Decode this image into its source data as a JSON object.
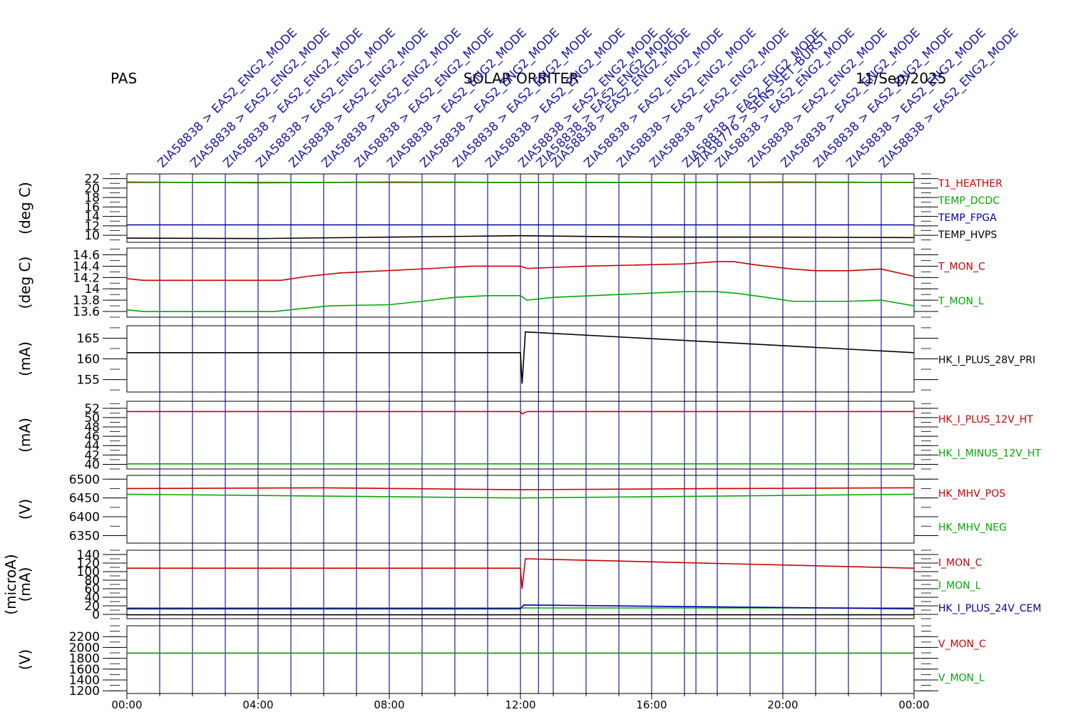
{
  "header": {
    "left": "PAS",
    "center": "SOLAR ORBITER",
    "right": "11/Sep/2025"
  },
  "events": [
    {
      "label": "ZIA58838 > EAS2_ENG2_MODE",
      "hour": 1.0
    },
    {
      "label": "ZIA58838 > EAS2_ENG2_MODE",
      "hour": 2.0
    },
    {
      "label": "ZIA58838 > EAS2_ENG2_MODE",
      "hour": 3.0
    },
    {
      "label": "ZIA58838 > EAS2_ENG2_MODE",
      "hour": 4.0
    },
    {
      "label": "ZIA58838 > EAS2_ENG2_MODE",
      "hour": 5.0
    },
    {
      "label": "ZIA58838 > EAS2_ENG2_MODE",
      "hour": 6.0
    },
    {
      "label": "ZIA58838 > EAS2_ENG2_MODE",
      "hour": 7.0
    },
    {
      "label": "ZIA58838 > EAS2_ENG2_MODE",
      "hour": 8.0
    },
    {
      "label": "ZIA58838 > EAS2_ENG2_MODE",
      "hour": 9.0
    },
    {
      "label": "ZIA58838 > EAS2_ENG2_MODE",
      "hour": 10.0
    },
    {
      "label": "ZIA58838 > EAS2_ENG2_MODE",
      "hour": 11.0
    },
    {
      "label": "ZIA58838 > EAS2_ENG2_MODE",
      "hour": 12.0
    },
    {
      "label": "ZIA58838 > EAS2_ENG2_MODE",
      "hour": 12.55
    },
    {
      "label": "ZIA58838 > EAS2_ENG2_MODE",
      "hour": 13.0
    },
    {
      "label": "ZIA58838 > EAS2_ENG2_MODE",
      "hour": 14.0
    },
    {
      "label": "ZIA58838 > EAS2_ENG2_MODE",
      "hour": 15.0
    },
    {
      "label": "ZIA58838 > EAS2_ENG2_MODE",
      "hour": 16.0
    },
    {
      "label": "ZIA58838 > EAS2_ENG2_MODE",
      "hour": 17.0
    },
    {
      "label": "ZIA58776 > SENS_SET_BURST",
      "hour": 17.35
    },
    {
      "label": "ZIA58838 > EAS2_ENG2_MODE",
      "hour": 18.0
    },
    {
      "label": "ZIA58838 > EAS2_ENG2_MODE",
      "hour": 19.0
    },
    {
      "label": "ZIA58838 > EAS2_ENG2_MODE",
      "hour": 20.0
    },
    {
      "label": "ZIA58838 > EAS2_ENG2_MODE",
      "hour": 21.0
    },
    {
      "label": "ZIA58838 > EAS2_ENG2_MODE",
      "hour": 22.0
    },
    {
      "label": "ZIA58838 > EAS2_ENG2_MODE",
      "hour": 23.0
    }
  ],
  "chart_data": [
    {
      "type": "line",
      "ylabel": "(deg C)",
      "ylim": [
        8.5,
        23
      ],
      "yticks": [
        10,
        12,
        14,
        16,
        18,
        20,
        22
      ],
      "series": [
        {
          "name": "T1_HEATHER",
          "color": "#cc0000",
          "x": [
            0,
            24
          ],
          "y": [
            21.2,
            21.2
          ]
        },
        {
          "name": "TEMP_DCDC",
          "color": "#00aa00",
          "x": [
            0,
            4,
            8,
            12,
            16,
            20,
            24
          ],
          "y": [
            21.3,
            21.1,
            21.3,
            21.2,
            21.2,
            21.3,
            21.2
          ]
        },
        {
          "name": "TEMP_FPGA",
          "color": "#0000aa",
          "x": [
            0,
            24
          ],
          "y": [
            12.2,
            12.2
          ]
        },
        {
          "name": "TEMP_HVPS",
          "color": "#000000",
          "x": [
            0,
            4,
            8,
            12,
            16,
            20,
            24
          ],
          "y": [
            9.4,
            9.3,
            9.6,
            9.9,
            9.6,
            9.6,
            9.5
          ]
        }
      ]
    },
    {
      "type": "line",
      "ylabel": "(deg C)",
      "ylim": [
        13.5,
        14.72
      ],
      "yticks": [
        13.6,
        13.8,
        14.0,
        14.2,
        14.4,
        14.6
      ],
      "series": [
        {
          "name": "T_MON_C",
          "color": "#cc0000",
          "x": [
            0,
            0.5,
            4.7,
            5.5,
            6.5,
            9.3,
            10.5,
            12.0,
            12.2,
            14.0,
            17.0,
            18.0,
            18.5,
            19.2,
            20.3,
            21.0,
            22.0,
            23.0,
            24.0
          ],
          "y": [
            14.18,
            14.15,
            14.15,
            14.22,
            14.28,
            14.36,
            14.4,
            14.4,
            14.36,
            14.4,
            14.44,
            14.48,
            14.48,
            14.42,
            14.35,
            14.32,
            14.32,
            14.35,
            14.22
          ]
        },
        {
          "name": "T_MON_L",
          "color": "#00aa00",
          "x": [
            0,
            0.5,
            4.5,
            5.3,
            6.2,
            8.0,
            9.0,
            10.0,
            11.0,
            12.0,
            12.2,
            13.0,
            15.0,
            17.0,
            18.0,
            18.6,
            19.5,
            20.3,
            22.0,
            23.0,
            24.0
          ],
          "y": [
            13.63,
            13.6,
            13.6,
            13.65,
            13.7,
            13.72,
            13.78,
            13.85,
            13.88,
            13.88,
            13.8,
            13.85,
            13.9,
            13.95,
            13.95,
            13.92,
            13.85,
            13.78,
            13.78,
            13.8,
            13.7
          ]
        }
      ]
    },
    {
      "type": "line",
      "ylabel": "(mA)",
      "ylim": [
        152,
        168
      ],
      "yticks": [
        155,
        160,
        165
      ],
      "series": [
        {
          "name": "HK_I_PLUS_28V_PRI",
          "color": "#000000",
          "x": [
            0,
            12.0,
            12.05,
            12.15,
            24
          ],
          "y": [
            161.5,
            161.5,
            154.0,
            166.5,
            161.5
          ]
        }
      ]
    },
    {
      "type": "line",
      "ylabel": "(mA)",
      "ylim": [
        39,
        53.5
      ],
      "yticks": [
        40,
        42,
        44,
        46,
        48,
        50,
        52
      ],
      "series": [
        {
          "name": "HK_I_PLUS_12V_HT",
          "color": "#cc0000",
          "x": [
            0,
            12.0,
            12.05,
            12.2,
            24
          ],
          "y": [
            51.3,
            51.3,
            50.8,
            51.3,
            51.3
          ]
        },
        {
          "name": "HK_I_MINUS_12V_HT",
          "color": "#00aa00",
          "x": [
            0,
            24
          ],
          "y": [
            40.1,
            40.1
          ]
        }
      ]
    },
    {
      "type": "line",
      "ylabel": "(V)",
      "ylim": [
        6330,
        6510
      ],
      "yticks": [
        6350,
        6400,
        6450,
        6500
      ],
      "series": [
        {
          "name": "HK_MHV_POS",
          "color": "#cc0000",
          "x": [
            0,
            6,
            12,
            18,
            24
          ],
          "y": [
            6475,
            6477,
            6472,
            6475,
            6477
          ]
        },
        {
          "name": "HK_MHV_NEG",
          "color": "#00aa00",
          "x": [
            0,
            6,
            12,
            18,
            24
          ],
          "y": [
            6460,
            6455,
            6450,
            6455,
            6460
          ]
        }
      ]
    },
    {
      "type": "line",
      "ylabel": "(mA)",
      "ylabel2": "(microA)",
      "ylim": [
        -10,
        150
      ],
      "yticks": [
        0,
        20,
        40,
        60,
        80,
        100,
        120,
        140
      ],
      "series": [
        {
          "name": "I_MON_C",
          "color": "#cc0000",
          "x": [
            0,
            12.0,
            12.05,
            12.15,
            24
          ],
          "y": [
            108,
            108,
            60,
            130,
            108
          ]
        },
        {
          "name": "I_MON_L",
          "color": "#00aa00",
          "x": [
            0,
            24
          ],
          "y": [
            15,
            15
          ]
        },
        {
          "name": "HK_I_PLUS_24V_CEM",
          "color": "#0000aa",
          "x": [
            0,
            12.0,
            12.1,
            24
          ],
          "y": [
            13,
            13,
            22,
            13
          ]
        },
        {
          "name": "",
          "color": "#000000",
          "x": [
            0,
            24
          ],
          "y": [
            -1,
            -1
          ]
        }
      ]
    },
    {
      "type": "line",
      "ylabel": "(V)",
      "ylim": [
        1150,
        2400
      ],
      "yticks": [
        1200,
        1400,
        1600,
        1800,
        2000,
        2200
      ],
      "series": [
        {
          "name": "V_MON_C",
          "color": "#cc0000",
          "x": [
            0,
            24
          ],
          "y": [
            1895,
            1895
          ]
        },
        {
          "name": "V_MON_L",
          "color": "#00aa00",
          "x": [
            0,
            24
          ],
          "y": [
            1895,
            1895
          ]
        }
      ]
    }
  ],
  "x_axis": {
    "ticks": [
      "00:00",
      "04:00",
      "08:00",
      "12:00",
      "16:00",
      "20:00",
      "00:00"
    ]
  }
}
